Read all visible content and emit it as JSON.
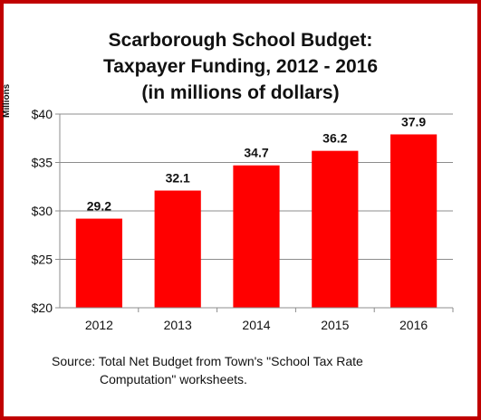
{
  "chart_data": {
    "type": "bar",
    "title_lines": [
      "Scarborough School Budget:",
      "Taxpayer Funding, 2012 - 2016",
      "(in millions of dollars)"
    ],
    "ylabel": "Millions",
    "xlabel": "",
    "categories": [
      "2012",
      "2013",
      "2014",
      "2015",
      "2016"
    ],
    "values": [
      29.2,
      32.1,
      34.7,
      36.2,
      37.9
    ],
    "data_labels": [
      "29.2",
      "32.1",
      "34.7",
      "36.2",
      "37.9"
    ],
    "ylim": [
      20,
      40
    ],
    "yticks": [
      20,
      25,
      30,
      35,
      40
    ],
    "ytick_labels": [
      "$20",
      "$25",
      "$30",
      "$35",
      "$40"
    ],
    "grid": true,
    "legend": "none",
    "bar_color": "#ff0000",
    "frame_color": "#c00000"
  },
  "source": {
    "line1": "Source: Total Net Budget from Town's \"School Tax Rate",
    "line2": "Computation\" worksheets."
  }
}
